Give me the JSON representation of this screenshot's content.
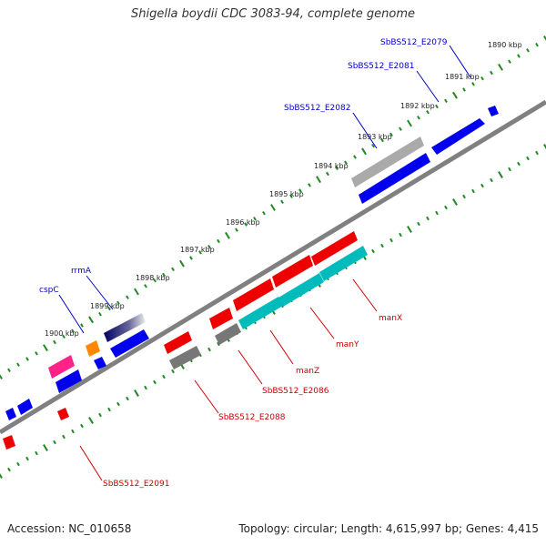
{
  "title": "Shigella boydii CDC 3083-94, complete genome",
  "footer": {
    "accession": "Accession: NC_010658",
    "stats": "Topology: circular; Length: 4,615,997 bp; Genes: 4,415"
  },
  "scale_labels": [
    "1890 kbp",
    "1891 kbp",
    "1892 kbp",
    "1893 kbp",
    "1894 kbp",
    "1895 kbp",
    "1896 kbp",
    "1897 kbp",
    "1898 kbp",
    "1899 kbp",
    "1900 kbp"
  ],
  "gene_labels": {
    "top": [
      "SbBS512_E2079",
      "SbBS512_E2081",
      "SbBS512_E2082",
      "rrmA",
      "cspC"
    ],
    "bottom": [
      "manX",
      "manY",
      "manZ",
      "SbBS512_E2086",
      "SbBS512_E2088",
      "SbBS512_E2091"
    ]
  },
  "colors": {
    "cds_forward": "#0000ee",
    "cds_reverse": "#ee0000",
    "rrna": "#000077",
    "trna": "#ff8800",
    "pseudo": "#999999",
    "misc": "#ff2288",
    "mannose_pts": "#00bbbb",
    "backbone": "#808080",
    "tick": "#228822",
    "top_label": "#0000cc",
    "bottom_label": "#cc0000"
  }
}
